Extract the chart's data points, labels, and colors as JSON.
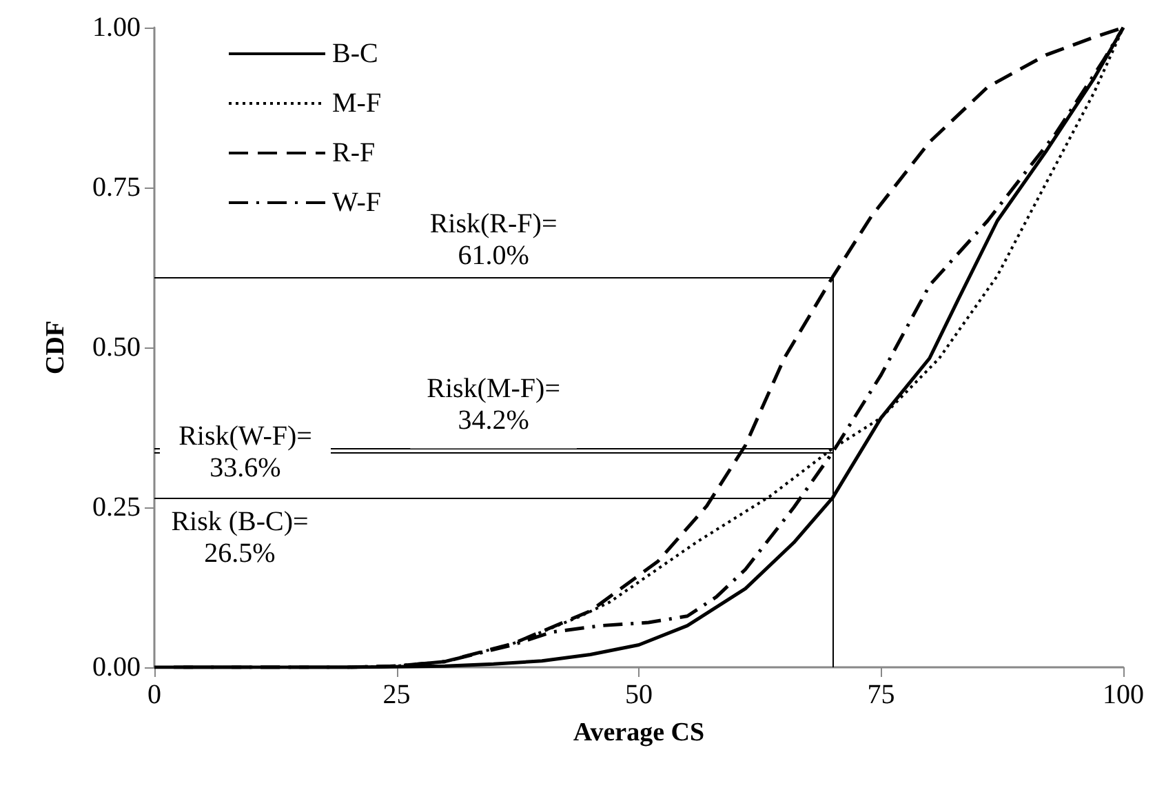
{
  "chart_data": {
    "type": "line",
    "xlabel": "Average CS",
    "ylabel": "CDF",
    "xlim": [
      0,
      100
    ],
    "xticks": [
      0,
      25,
      50,
      75,
      100
    ],
    "ylim": [
      0,
      1
    ],
    "yticks": [
      {
        "value": 0,
        "label": "0.00"
      },
      {
        "value": 0.25,
        "label": "0.25"
      },
      {
        "value": 0.5,
        "label": "0.50"
      },
      {
        "value": 0.75,
        "label": "0.75"
      },
      {
        "value": 1,
        "label": "1.00"
      }
    ],
    "grid": false,
    "legend": "top left",
    "marker": "none",
    "series": [
      {
        "name": "B-C",
        "color": "#000000",
        "line_style": "solid",
        "x": [
          0,
          20,
          30,
          35,
          40,
          45,
          50,
          55,
          61,
          66,
          70,
          75,
          80,
          83,
          87,
          92,
          97,
          100
        ],
        "values": [
          0,
          0,
          0.002,
          0.005,
          0.01,
          0.02,
          0.035,
          0.065,
          0.123,
          0.195,
          0.265,
          0.39,
          0.483,
          0.576,
          0.698,
          0.806,
          0.921,
          1
        ]
      },
      {
        "name": "M-F",
        "color": "#000000",
        "line_style": "dotted",
        "x": [
          1,
          20,
          25,
          30,
          37,
          44,
          47,
          56,
          63.5,
          70,
          75,
          81,
          87,
          92,
          97,
          100
        ],
        "values": [
          0,
          0,
          0.002,
          0.009,
          0.037,
          0.08,
          0.102,
          0.196,
          0.267,
          0.342,
          0.39,
          0.483,
          0.612,
          0.756,
          0.899,
          1
        ]
      },
      {
        "name": "R-F",
        "color": "#000000",
        "line_style": "dashed",
        "x": [
          2,
          20,
          25,
          30,
          37,
          45,
          52,
          57,
          61,
          65,
          70,
          74,
          80,
          86,
          92,
          97,
          100
        ],
        "values": [
          0,
          0,
          0.002,
          0.009,
          0.037,
          0.088,
          0.166,
          0.252,
          0.347,
          0.483,
          0.61,
          0.705,
          0.821,
          0.907,
          0.957,
          0.985,
          1
        ]
      },
      {
        "name": "W-F",
        "color": "#000000",
        "line_style": "dashdot",
        "x": [
          3,
          20,
          25,
          30,
          37,
          41,
          46,
          51,
          55,
          58,
          61,
          66,
          70,
          75,
          80,
          86,
          93,
          98,
          100
        ],
        "values": [
          0,
          0,
          0.002,
          0.009,
          0.035,
          0.055,
          0.065,
          0.07,
          0.08,
          0.11,
          0.153,
          0.25,
          0.336,
          0.457,
          0.597,
          0.698,
          0.834,
          0.95,
          1
        ]
      }
    ],
    "ref_lines": [
      {
        "axis": "x",
        "value": 70,
        "color": "#000000"
      },
      {
        "axis": "y",
        "value": 0.61,
        "label": "Risk(R-F)=\n61.0%",
        "color": "#000000"
      },
      {
        "axis": "y",
        "value": 0.342,
        "label": "Risk(M-F)=\n34.2%",
        "color": "#000000"
      },
      {
        "axis": "y",
        "value": 0.336,
        "label": "Risk(W-F)=\n33.6%",
        "color": "#000000"
      },
      {
        "axis": "y",
        "value": 0.265,
        "label": "Risk (B-C)=\n26.5%",
        "color": "#000000"
      }
    ]
  }
}
